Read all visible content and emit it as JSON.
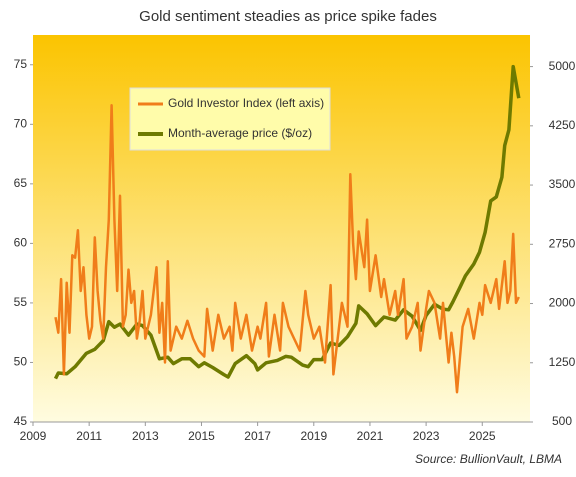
{
  "chart_data": {
    "type": "line",
    "title": "Gold sentiment  steadies as price spike fades",
    "source": "Source:  BullionVault, LBMA",
    "xlim": [
      2009,
      2026.7
    ],
    "xticks": [
      2009,
      2011,
      2013,
      2015,
      2017,
      2019,
      2021,
      2023,
      2025
    ],
    "ylim": [
      45,
      77.5
    ],
    "yticks": [
      45,
      50,
      55,
      60,
      65,
      70,
      75
    ],
    "y2lim": [
      500,
      5400
    ],
    "y2ticks": [
      500,
      1250,
      2000,
      2750,
      3500,
      4250,
      5000
    ],
    "series": [
      {
        "name": "Gold Investor Index (left axis)",
        "color": "#f07d1a",
        "x": [
          2009.8,
          2009.9,
          2010.0,
          2010.1,
          2010.2,
          2010.3,
          2010.4,
          2010.5,
          2010.6,
          2010.7,
          2010.8,
          2010.9,
          2011.0,
          2011.1,
          2011.2,
          2011.3,
          2011.4,
          2011.5,
          2011.6,
          2011.7,
          2011.8,
          2011.9,
          2012.0,
          2012.1,
          2012.2,
          2012.3,
          2012.4,
          2012.5,
          2012.6,
          2012.7,
          2012.8,
          2012.9,
          2013.0,
          2013.2,
          2013.4,
          2013.5,
          2013.6,
          2013.7,
          2013.8,
          2013.9,
          2014.1,
          2014.3,
          2014.5,
          2014.7,
          2014.9,
          2015.1,
          2015.2,
          2015.4,
          2015.6,
          2015.8,
          2016.0,
          2016.1,
          2016.2,
          2016.4,
          2016.6,
          2016.8,
          2017.0,
          2017.1,
          2017.3,
          2017.4,
          2017.6,
          2017.8,
          2017.9,
          2018.1,
          2018.3,
          2018.5,
          2018.7,
          2018.8,
          2019.0,
          2019.2,
          2019.4,
          2019.6,
          2019.7,
          2019.9,
          2020.0,
          2020.2,
          2020.3,
          2020.4,
          2020.5,
          2020.6,
          2020.8,
          2020.9,
          2021.0,
          2021.2,
          2021.4,
          2021.5,
          2021.7,
          2021.9,
          2022.0,
          2022.2,
          2022.3,
          2022.5,
          2022.7,
          2022.8,
          2023.0,
          2023.1,
          2023.3,
          2023.5,
          2023.6,
          2023.8,
          2023.9,
          2024.0,
          2024.1,
          2024.3,
          2024.5,
          2024.7,
          2024.9,
          2025.0,
          2025.1,
          2025.3,
          2025.5,
          2025.6,
          2025.8,
          2025.9,
          2026.0,
          2026.1,
          2026.2,
          2026.3
        ],
        "values": [
          53.8,
          52.5,
          57,
          49,
          56.7,
          52.5,
          59,
          58.8,
          61.1,
          56,
          58,
          54,
          52,
          53,
          60.5,
          56,
          53.5,
          52,
          58,
          62,
          71.6,
          62,
          56,
          64,
          53,
          54,
          57.8,
          55,
          56,
          52,
          53.5,
          56,
          52,
          54,
          58,
          52.5,
          55,
          50,
          58.5,
          51,
          53,
          52,
          53.5,
          52,
          51,
          50.5,
          54.5,
          51,
          54,
          52,
          53,
          51,
          55,
          52,
          54,
          51,
          53,
          52,
          55,
          50.5,
          54,
          51,
          55,
          53,
          52,
          51,
          56,
          54,
          52,
          53,
          50,
          56.5,
          49,
          53,
          55,
          53,
          65.8,
          60,
          57,
          61,
          58,
          62,
          56,
          59,
          55.5,
          57,
          54,
          56,
          54,
          57,
          52,
          53,
          55,
          51,
          54.5,
          56,
          55,
          52,
          55,
          50,
          52.5,
          50.5,
          47.5,
          53,
          54.5,
          52,
          55,
          54,
          56.5,
          55,
          57,
          54.5,
          58.5,
          55,
          56,
          60.8,
          55,
          55.5
        ]
      },
      {
        "name": "Month-average price ($/oz)",
        "color": "#6e7a00",
        "axis": "y2",
        "x": [
          2009.8,
          2009.9,
          2010.2,
          2010.5,
          2010.9,
          2011.2,
          2011.5,
          2011.7,
          2011.9,
          2012.1,
          2012.4,
          2012.7,
          2012.9,
          2013.2,
          2013.5,
          2013.8,
          2014.0,
          2014.3,
          2014.6,
          2014.9,
          2015.1,
          2015.4,
          2015.8,
          2015.95,
          2016.2,
          2016.6,
          2016.9,
          2017.0,
          2017.3,
          2017.7,
          2018.0,
          2018.2,
          2018.6,
          2018.8,
          2019.0,
          2019.3,
          2019.6,
          2019.9,
          2020.2,
          2020.5,
          2020.6,
          2020.9,
          2021.2,
          2021.5,
          2021.9,
          2022.2,
          2022.5,
          2022.8,
          2023.0,
          2023.3,
          2023.6,
          2023.8,
          2023.95,
          2024.2,
          2024.4,
          2024.7,
          2024.9,
          2025.1,
          2025.3,
          2025.5,
          2025.7,
          2025.8,
          2025.95,
          2026.1,
          2026.3
        ],
        "values": [
          1050,
          1120,
          1110,
          1200,
          1370,
          1420,
          1530,
          1770,
          1700,
          1740,
          1600,
          1740,
          1720,
          1600,
          1300,
          1320,
          1240,
          1300,
          1300,
          1200,
          1250,
          1190,
          1100,
          1070,
          1240,
          1340,
          1240,
          1160,
          1250,
          1280,
          1330,
          1320,
          1220,
          1200,
          1290,
          1290,
          1500,
          1470,
          1580,
          1750,
          1970,
          1870,
          1720,
          1830,
          1790,
          1920,
          1840,
          1660,
          1850,
          1990,
          1930,
          1920,
          2020,
          2200,
          2350,
          2500,
          2650,
          2900,
          3300,
          3350,
          3600,
          4000,
          4200,
          5000,
          4600
        ]
      }
    ]
  }
}
